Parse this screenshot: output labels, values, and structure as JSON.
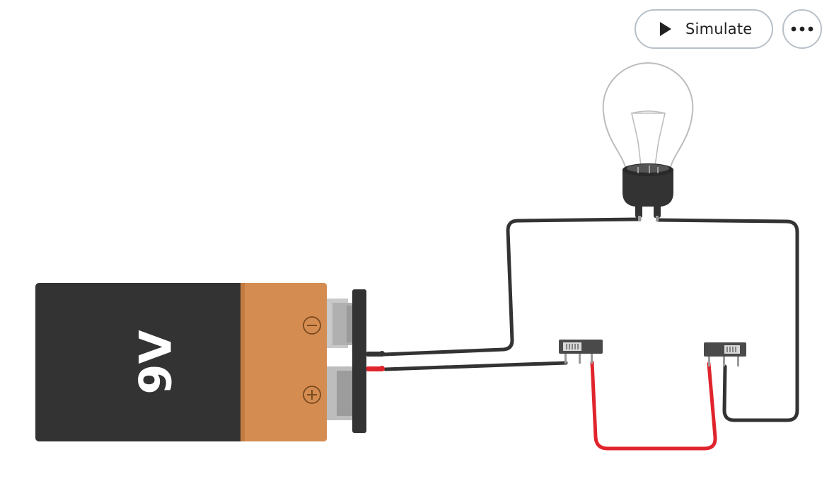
{
  "toolbar": {
    "simulate_label": "Simulate",
    "simulate_icon": "play-icon",
    "more_icon": "more-horizontal-icon"
  },
  "circuit": {
    "battery": {
      "voltage_label": "9V",
      "negative_terminal": "−",
      "positive_terminal": "+",
      "body_color": "#333333",
      "cap_color": "#d48c50"
    },
    "components": [
      "battery",
      "light-bulb",
      "slide-switch",
      "slide-switch"
    ],
    "wire_colors": {
      "black": "#333333",
      "red": "#e0242c"
    }
  }
}
